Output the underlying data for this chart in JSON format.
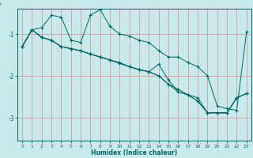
{
  "xlabel": "Humidex (Indice chaleur)",
  "background_color": "#c8eaea",
  "grid_color": "#d09090",
  "line_color": "#006666",
  "xlim": [
    -0.5,
    23.5
  ],
  "ylim": [
    -3.55,
    -0.4
  ],
  "yticks": [
    -3,
    -2,
    -1
  ],
  "xticks": [
    0,
    1,
    2,
    3,
    4,
    5,
    6,
    7,
    8,
    9,
    10,
    11,
    12,
    13,
    14,
    15,
    16,
    17,
    18,
    19,
    20,
    21,
    22,
    23
  ],
  "series": [
    {
      "x": [
        0,
        1,
        2,
        3,
        4,
        5,
        6,
        7,
        8,
        9,
        10,
        11,
        12,
        13,
        14,
        15,
        16,
        17,
        18,
        19,
        20,
        21,
        22,
        23
      ],
      "y": [
        -1.3,
        -0.9,
        -0.85,
        -0.55,
        -0.6,
        -1.15,
        -1.2,
        -0.55,
        -0.42,
        -0.82,
        -1.0,
        -1.05,
        -1.15,
        -1.2,
        -1.4,
        -1.55,
        -1.55,
        -1.68,
        -1.78,
        -2.0,
        -2.72,
        -2.78,
        -2.82,
        -0.95
      ]
    },
    {
      "x": [
        0,
        1,
        2,
        3,
        4,
        5,
        6,
        7,
        8,
        9,
        10,
        11,
        12,
        13,
        14,
        15,
        16,
        17,
        18,
        19,
        20,
        21,
        22,
        23
      ],
      "y": [
        -1.3,
        -0.9,
        -1.08,
        -1.15,
        -1.3,
        -1.35,
        -1.4,
        -1.48,
        -1.55,
        -1.62,
        -1.7,
        -1.78,
        -1.85,
        -1.9,
        -1.72,
        -2.1,
        -2.38,
        -2.45,
        -2.6,
        -2.88,
        -2.88,
        -2.88,
        -2.52,
        -2.42
      ]
    },
    {
      "x": [
        0,
        1,
        2,
        3,
        4,
        5,
        6,
        7,
        8,
        9,
        10,
        11,
        12,
        13,
        14,
        15,
        16,
        17,
        18,
        19,
        20,
        21,
        22,
        23
      ],
      "y": [
        -1.3,
        -0.9,
        -1.08,
        -1.15,
        -1.3,
        -1.35,
        -1.4,
        -1.48,
        -1.55,
        -1.62,
        -1.7,
        -1.78,
        -1.85,
        -1.9,
        -2.0,
        -2.2,
        -2.38,
        -2.45,
        -2.6,
        -2.88,
        -2.88,
        -2.88,
        -2.52,
        -2.42
      ]
    },
    {
      "x": [
        0,
        1,
        2,
        3,
        4,
        5,
        6,
        7,
        8,
        9,
        10,
        11,
        12,
        13,
        14,
        15,
        16,
        17,
        18,
        19,
        20,
        21,
        22,
        23
      ],
      "y": [
        -1.3,
        -0.9,
        -1.08,
        -1.15,
        -1.3,
        -1.35,
        -1.4,
        -1.48,
        -1.55,
        -1.62,
        -1.68,
        -1.78,
        -1.85,
        -1.9,
        -2.0,
        -2.2,
        -2.32,
        -2.45,
        -2.52,
        -2.88,
        -2.88,
        -2.88,
        -2.52,
        -2.42
      ]
    }
  ]
}
